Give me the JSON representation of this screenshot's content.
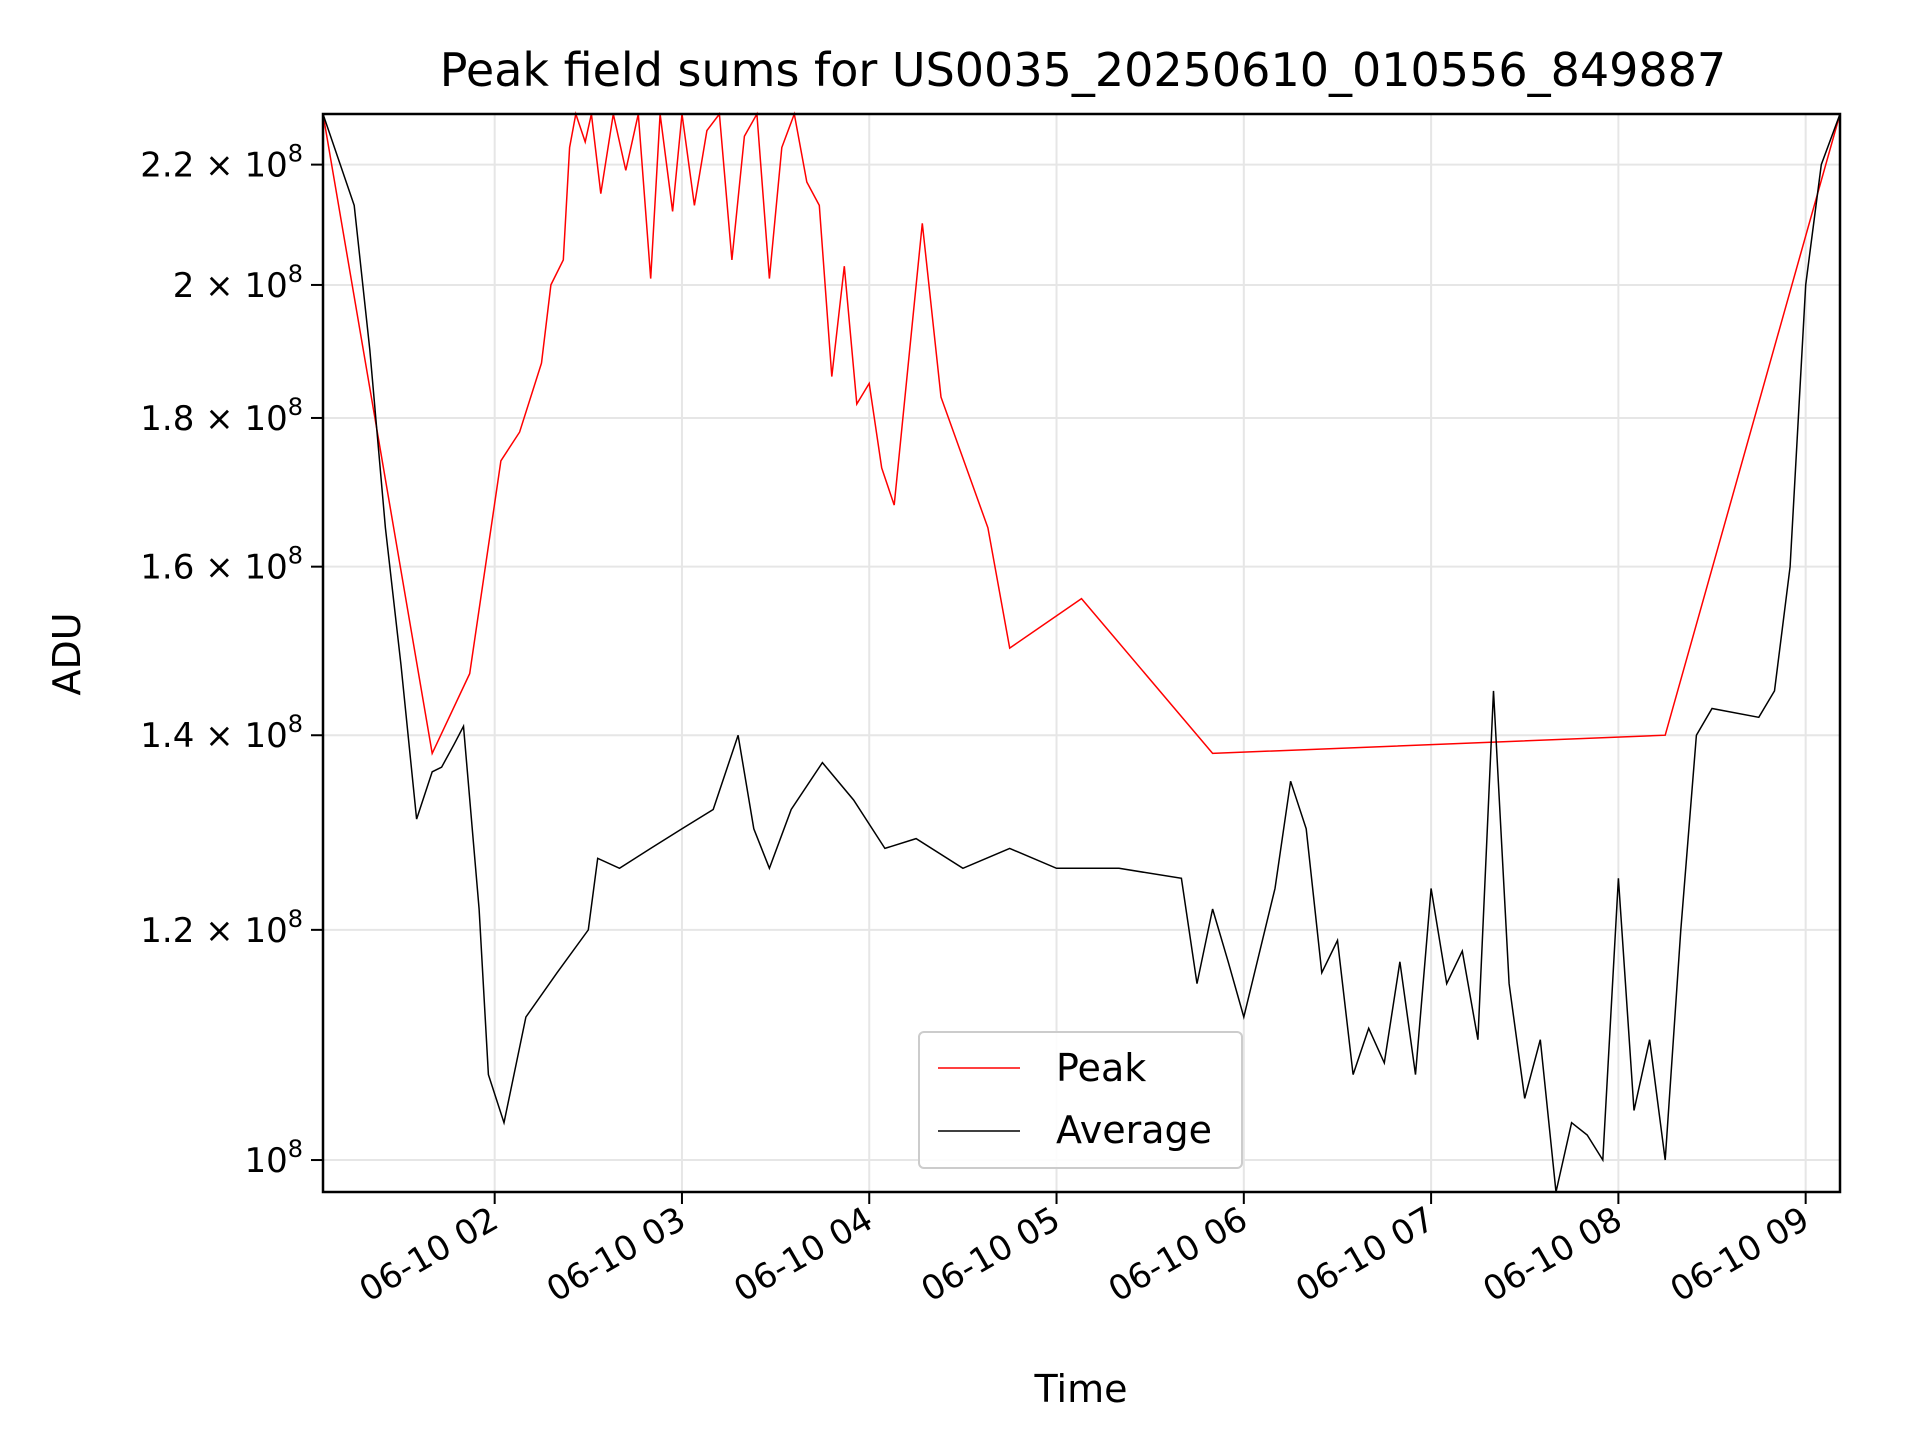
{
  "chart_data": {
    "type": "line",
    "title": "Peak field sums for US0035_20250610_010556_849887",
    "xlabel": "Time",
    "ylabel": "ADU",
    "y_scale": "log",
    "x_unit": "time",
    "xlim": [
      "2025-06-10 01:05",
      "2025-06-10 09:11"
    ],
    "ylim": [
      97500000,
      229000000
    ],
    "x_ticks": [
      {
        "t": "2025-06-10 02:00",
        "label": "06-10 02"
      },
      {
        "t": "2025-06-10 03:00",
        "label": "06-10 03"
      },
      {
        "t": "2025-06-10 04:00",
        "label": "06-10 04"
      },
      {
        "t": "2025-06-10 05:00",
        "label": "06-10 05"
      },
      {
        "t": "2025-06-10 06:00",
        "label": "06-10 06"
      },
      {
        "t": "2025-06-10 07:00",
        "label": "06-10 07"
      },
      {
        "t": "2025-06-10 08:00",
        "label": "06-10 08"
      },
      {
        "t": "2025-06-10 09:00",
        "label": "06-10 09"
      }
    ],
    "y_ticks": [
      {
        "value": 100000000,
        "label": "10",
        "exp": "8"
      },
      {
        "value": 120000000,
        "label": "1.2 × 10",
        "exp": "8"
      },
      {
        "value": 140000000,
        "label": "1.4 × 10",
        "exp": "8"
      },
      {
        "value": 160000000,
        "label": "1.6 × 10",
        "exp": "8"
      },
      {
        "value": 180000000,
        "label": "1.8 × 10",
        "exp": "8"
      },
      {
        "value": 200000000,
        "label": "2 × 10",
        "exp": "8"
      },
      {
        "value": 220000000,
        "label": "2.2 × 10",
        "exp": "8"
      }
    ],
    "grid": true,
    "legend_position": "lower-center",
    "series": [
      {
        "name": "Peak",
        "color": "#ff0000"
      },
      {
        "name": "Average",
        "color": "#000000"
      }
    ],
    "average": {
      "t": [
        "2025-06-10 01:05",
        "2025-06-10 01:15",
        "2025-06-10 01:20",
        "2025-06-10 01:25",
        "2025-06-10 01:30",
        "2025-06-10 01:35",
        "2025-06-10 01:40",
        "2025-06-10 01:43",
        "2025-06-10 01:47",
        "2025-06-10 01:50",
        "2025-06-10 01:55",
        "2025-06-10 01:58",
        "2025-06-10 02:03",
        "2025-06-10 02:10",
        "2025-06-10 02:20",
        "2025-06-10 02:30",
        "2025-06-10 02:33",
        "2025-06-10 02:40",
        "2025-06-10 02:50",
        "2025-06-10 03:00",
        "2025-06-10 03:10",
        "2025-06-10 03:18",
        "2025-06-10 03:23",
        "2025-06-10 03:28",
        "2025-06-10 03:35",
        "2025-06-10 03:45",
        "2025-06-10 03:55",
        "2025-06-10 04:05",
        "2025-06-10 04:15",
        "2025-06-10 04:30",
        "2025-06-10 04:45",
        "2025-06-10 05:00",
        "2025-06-10 05:20",
        "2025-06-10 05:40",
        "2025-06-10 05:45",
        "2025-06-10 05:50",
        "2025-06-10 05:55",
        "2025-06-10 06:00",
        "2025-06-10 06:10",
        "2025-06-10 06:15",
        "2025-06-10 06:20",
        "2025-06-10 06:25",
        "2025-06-10 06:30",
        "2025-06-10 06:35",
        "2025-06-10 06:40",
        "2025-06-10 06:45",
        "2025-06-10 06:50",
        "2025-06-10 06:55",
        "2025-06-10 07:00",
        "2025-06-10 07:05",
        "2025-06-10 07:10",
        "2025-06-10 07:15",
        "2025-06-10 07:20",
        "2025-06-10 07:25",
        "2025-06-10 07:30",
        "2025-06-10 07:35",
        "2025-06-10 07:40",
        "2025-06-10 07:45",
        "2025-06-10 07:50",
        "2025-06-10 07:55",
        "2025-06-10 08:00",
        "2025-06-10 08:05",
        "2025-06-10 08:10",
        "2025-06-10 08:15",
        "2025-06-10 08:20",
        "2025-06-10 08:25",
        "2025-06-10 08:30",
        "2025-06-10 08:45",
        "2025-06-10 08:50",
        "2025-06-10 08:55",
        "2025-06-10 09:00",
        "2025-06-10 09:05",
        "2025-06-10 09:11"
      ],
      "v": [
        229000000,
        213000000,
        190000000,
        165000000,
        148000000,
        131000000,
        136000000,
        136500000,
        139000000,
        141000000,
        122000000,
        107000000,
        103000000,
        112000000,
        116000000,
        120000000,
        127000000,
        126000000,
        128000000,
        130000000,
        132000000,
        140000000,
        130000000,
        126000000,
        132000000,
        137000000,
        133000000,
        128000000,
        129000000,
        126000000,
        128000000,
        126000000,
        126000000,
        125000000,
        115000000,
        122000000,
        117000000,
        112000000,
        124000000,
        135000000,
        130000000,
        116000000,
        119000000,
        107000000,
        111000000,
        108000000,
        117000000,
        107000000,
        124000000,
        115000000,
        118000000,
        110000000,
        145000000,
        115000000,
        105000000,
        110000000,
        97500000,
        103000000,
        102000000,
        100000000,
        125000000,
        104000000,
        110000000,
        100000000,
        120000000,
        140000000,
        143000000,
        142000000,
        145000000,
        160000000,
        200000000,
        220000000,
        229000000
      ]
    },
    "peak": {
      "t": [
        "2025-06-10 01:05",
        "2025-06-10 01:40",
        "2025-06-10 01:52",
        "2025-06-10 02:02",
        "2025-06-10 02:08",
        "2025-06-10 02:15",
        "2025-06-10 02:18",
        "2025-06-10 02:22",
        "2025-06-10 02:24",
        "2025-06-10 02:26",
        "2025-06-10 02:29",
        "2025-06-10 02:31",
        "2025-06-10 02:34",
        "2025-06-10 02:38",
        "2025-06-10 02:42",
        "2025-06-10 02:46",
        "2025-06-10 02:50",
        "2025-06-10 02:53",
        "2025-06-10 02:57",
        "2025-06-10 03:00",
        "2025-06-10 03:04",
        "2025-06-10 03:08",
        "2025-06-10 03:12",
        "2025-06-10 03:16",
        "2025-06-10 03:20",
        "2025-06-10 03:24",
        "2025-06-10 03:28",
        "2025-06-10 03:32",
        "2025-06-10 03:36",
        "2025-06-10 03:40",
        "2025-06-10 03:44",
        "2025-06-10 03:48",
        "2025-06-10 03:52",
        "2025-06-10 03:56",
        "2025-06-10 04:00",
        "2025-06-10 04:04",
        "2025-06-10 04:08",
        "2025-06-10 04:17",
        "2025-06-10 04:23",
        "2025-06-10 04:38",
        "2025-06-10 04:45",
        "2025-06-10 05:08",
        "2025-06-10 05:50",
        "2025-06-10 08:15",
        "2025-06-10 09:11"
      ],
      "v": [
        229000000,
        138000000,
        147000000,
        174000000,
        178000000,
        188000000,
        200000000,
        204000000,
        223000000,
        229000000,
        224000000,
        229000000,
        215000000,
        229000000,
        219000000,
        229000000,
        201000000,
        229000000,
        212000000,
        229000000,
        213000000,
        226000000,
        229000000,
        204000000,
        225000000,
        229000000,
        201000000,
        223000000,
        229000000,
        217000000,
        213000000,
        186000000,
        203000000,
        182000000,
        185000000,
        173000000,
        168000000,
        210000000,
        183000000,
        165000000,
        150000000,
        156000000,
        138000000,
        140000000,
        229000000
      ]
    }
  }
}
